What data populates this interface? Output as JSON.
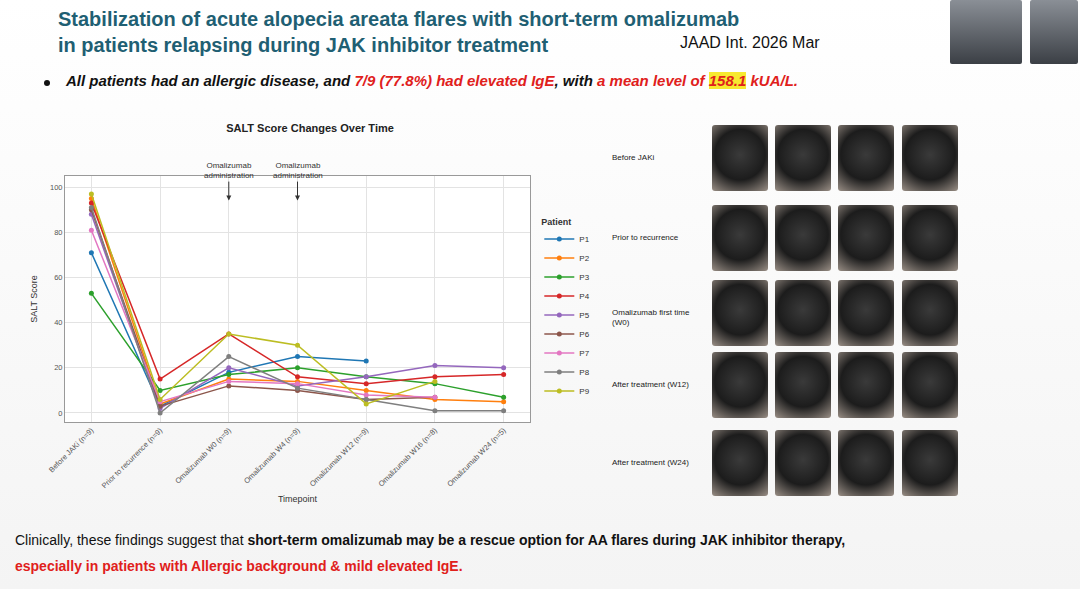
{
  "header": {
    "title_lines": [
      "Stabilization of acute alopecia areata flares with short-term omalizumab",
      "in patients relapsing during JAK inhibitor treatment"
    ],
    "citation": "JAAD Int. 2026 Mar"
  },
  "bullet": [
    {
      "text": "All patients had an allergic disease, and ",
      "style": "plain"
    },
    {
      "text": "7/9 (77.8%) had elevated IgE",
      "style": "red"
    },
    {
      "text": ", with ",
      "style": "plain"
    },
    {
      "text": "a mean level of ",
      "style": "red"
    },
    {
      "text": "158.1",
      "style": "red_highlight"
    },
    {
      "text": " kUA/L.",
      "style": "red"
    }
  ],
  "chart_data": {
    "type": "line",
    "title": "SALT Score Changes Over Time",
    "x_label": "Timepoint",
    "y_label": "SALT Score",
    "legend_title": "Patient",
    "legend": "right",
    "marker": "circle",
    "grid": true,
    "categories": [
      "Before JAKi (n=9)",
      "Prior to recurrence (n=9)",
      "Omalizumab W0 (n=9)",
      "Omalizumab W4 (n=9)",
      "Omalizumab W12 (n=9)",
      "Omalizumab W16 (n=8)",
      "Omalizumab W24 (n=5)"
    ],
    "series": [
      {
        "name": "P1",
        "color": "#1f77b4",
        "values": [
          71,
          3,
          18,
          25,
          23,
          null,
          null
        ]
      },
      {
        "name": "P2",
        "color": "#ff7f0e",
        "values": [
          95,
          4,
          15,
          14,
          10,
          6,
          5
        ]
      },
      {
        "name": "P3",
        "color": "#2ca02c",
        "values": [
          53,
          10,
          17,
          20,
          16,
          13,
          7
        ]
      },
      {
        "name": "P4",
        "color": "#d62728",
        "values": [
          93,
          15,
          35,
          16,
          13,
          16,
          17
        ]
      },
      {
        "name": "P5",
        "color": "#9467bd",
        "values": [
          88,
          2,
          20,
          12,
          16,
          21,
          20
        ]
      },
      {
        "name": "P6",
        "color": "#8c564b",
        "values": [
          90,
          3,
          12,
          10,
          6,
          7,
          null
        ]
      },
      {
        "name": "P7",
        "color": "#e377c2",
        "values": [
          81,
          5,
          14,
          13,
          8,
          7,
          null
        ]
      },
      {
        "name": "P8",
        "color": "#7f7f7f",
        "values": [
          91,
          0,
          25,
          11,
          6,
          1,
          1
        ]
      },
      {
        "name": "P9",
        "color": "#bcbd22",
        "values": [
          97,
          6,
          35,
          30,
          4,
          14,
          null
        ]
      }
    ],
    "ylim": [
      -4,
      105
    ],
    "yticks": [
      0,
      20,
      40,
      60,
      80,
      100
    ],
    "annotations": [
      {
        "category": "Omalizumab W0 (n=9)",
        "text": "Omalizumab administration"
      },
      {
        "category": "Omalizumab W4 (n=9)",
        "text": "Omalizumab administration"
      }
    ]
  },
  "photo_panel": {
    "row_labels": [
      "Before JAKi",
      "Prior to recurrence",
      "Omalizumab first time (W0)",
      "After treatment (W12)",
      "After treatment (W24)"
    ]
  },
  "conclusion": [
    [
      {
        "text": "Clinically, these findings suggest that ",
        "style": "plain"
      },
      {
        "text": "short-term omalizumab may be a rescue option for AA flares during JAK inhibitor therapy,",
        "style": "bold"
      }
    ],
    [
      {
        "text": "especially in patients with Allergic background & mild elevated IgE.",
        "style": "red_bold"
      }
    ]
  ]
}
